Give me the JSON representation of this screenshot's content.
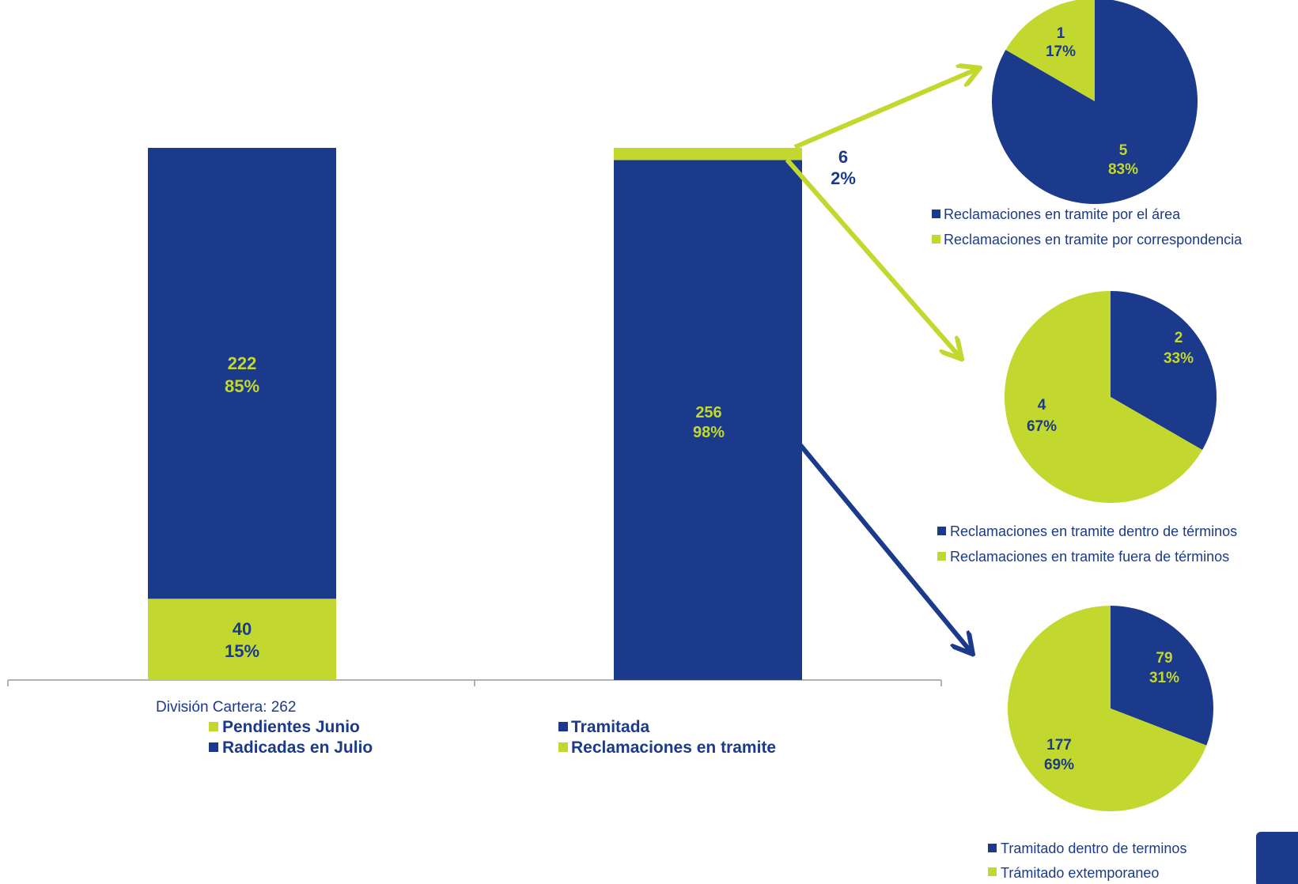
{
  "colors": {
    "blue": "#1b3a8c",
    "green": "#c2d82e",
    "axis": "#999999"
  },
  "chart_data": [
    {
      "type": "bar",
      "stacked": true,
      "categories": [
        "División Cartera: 262",
        ""
      ],
      "series": [
        {
          "name": "Pendientes Junio",
          "values": [
            40,
            null
          ],
          "labels": [
            "40",
            "15%"
          ],
          "color": "#c2d82e"
        },
        {
          "name": "Radicadas en Julio",
          "values": [
            222,
            null
          ],
          "labels": [
            "222",
            "85%"
          ],
          "color": "#1b3a8c"
        },
        {
          "name": "Tramitada",
          "values": [
            null,
            256
          ],
          "labels": [
            "256",
            "98%"
          ],
          "color": "#1b3a8c"
        },
        {
          "name": "Reclamaciones en tramite",
          "values": [
            null,
            6
          ],
          "labels": [
            "6",
            "2%"
          ],
          "color": "#c2d82e"
        }
      ],
      "ylim": [
        0,
        262
      ]
    },
    {
      "type": "pie",
      "slices": [
        {
          "name": "Reclamaciones en tramite por el área",
          "value": 5,
          "label_value": "5",
          "label_pct": "83%",
          "color": "#1b3a8c"
        },
        {
          "name": "Reclamaciones en tramite por correspondencia",
          "value": 1,
          "label_value": "1",
          "label_pct": "17%",
          "color": "#c2d82e"
        }
      ]
    },
    {
      "type": "pie",
      "slices": [
        {
          "name": "Reclamaciones en tramite dentro de términos",
          "value": 2,
          "label_value": "2",
          "label_pct": "33%",
          "color": "#1b3a8c"
        },
        {
          "name": "Reclamaciones en tramite fuera de términos",
          "value": 4,
          "label_value": "4",
          "label_pct": "67%",
          "color": "#c2d82e"
        }
      ]
    },
    {
      "type": "pie",
      "slices": [
        {
          "name": "Tramitado dentro de terminos",
          "value": 79,
          "label_value": "79",
          "label_pct": "31%",
          "color": "#1b3a8c"
        },
        {
          "name": "Trámitado extemporaneo",
          "value": 177,
          "label_value": "177",
          "label_pct": "69%",
          "color": "#c2d82e"
        }
      ]
    }
  ]
}
